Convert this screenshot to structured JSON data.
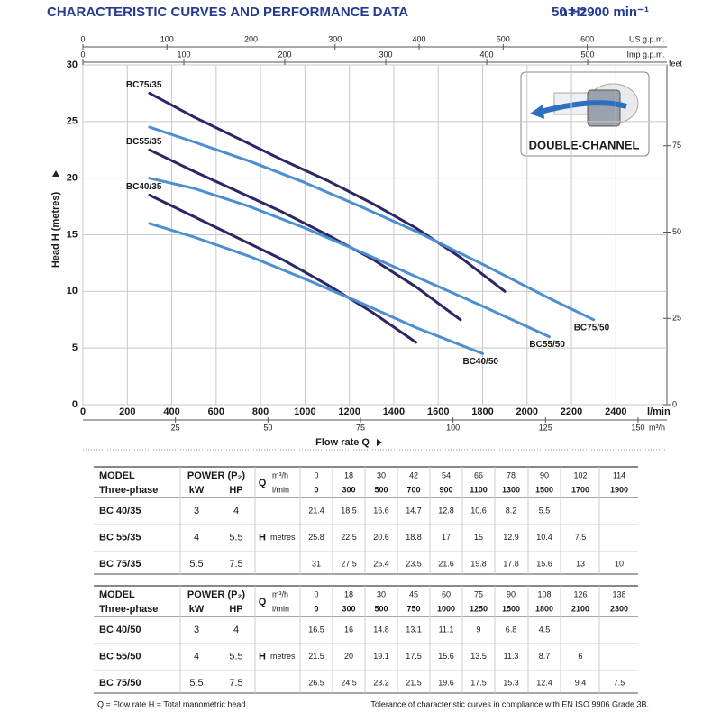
{
  "header": {
    "title": "CHARACTERISTIC CURVES AND PERFORMANCE DATA",
    "frequency": "50 Hz",
    "speed": "n= 2900 min⁻¹"
  },
  "chart_data": {
    "type": "line",
    "xlabel": "Flow rate Q",
    "ylabel": "Head H (metres)",
    "x_unit": "l/min",
    "xlim": [
      0,
      2630
    ],
    "xticks": [
      0,
      200,
      400,
      600,
      800,
      1000,
      1200,
      1400,
      1600,
      1800,
      2000,
      2200,
      2400
    ],
    "ylim": [
      0,
      30
    ],
    "yticks": [
      0,
      5,
      10,
      15,
      20,
      25,
      30
    ],
    "grid": true,
    "x2": {
      "unit": "m³/h",
      "lim": [
        0,
        157.8
      ],
      "ticks": [
        25,
        50,
        75,
        100,
        125,
        150
      ]
    },
    "x_us": {
      "unit": "US g.p.m.",
      "lim": [
        0,
        694.8
      ],
      "ticks": [
        0,
        100,
        200,
        300,
        400,
        500,
        600
      ]
    },
    "x_imp": {
      "unit": "Imp g.p.m.",
      "lim": [
        0,
        578.5
      ],
      "ticks": [
        0,
        100,
        200,
        300,
        400,
        500
      ]
    },
    "y2": {
      "unit": "feet",
      "lim": [
        0,
        98.43
      ],
      "ticks": [
        0,
        25,
        50,
        75
      ]
    },
    "badge": "DOUBLE-CHANNEL",
    "series": [
      {
        "name": "BC75/35",
        "color": "#2b2766",
        "x": [
          300,
          500,
          700,
          900,
          1100,
          1300,
          1500,
          1700,
          1900
        ],
        "values": [
          27.5,
          25.4,
          23.5,
          21.6,
          19.8,
          17.8,
          15.6,
          13,
          10
        ]
      },
      {
        "name": "BC55/35",
        "color": "#2b2766",
        "x": [
          300,
          500,
          700,
          900,
          1100,
          1300,
          1500,
          1700
        ],
        "values": [
          22.5,
          20.6,
          18.8,
          17,
          15,
          12.9,
          10.4,
          7.5
        ]
      },
      {
        "name": "BC40/35",
        "color": "#2b2766",
        "x": [
          300,
          500,
          700,
          900,
          1100,
          1300,
          1500
        ],
        "values": [
          18.5,
          16.6,
          14.7,
          12.8,
          10.6,
          8.2,
          5.5
        ]
      },
      {
        "name": "BC75/50",
        "color": "#4b8fd1",
        "x": [
          300,
          500,
          750,
          1000,
          1250,
          1500,
          1800,
          2100,
          2300
        ],
        "values": [
          24.5,
          23.2,
          21.5,
          19.6,
          17.5,
          15.3,
          12.4,
          9.4,
          7.5
        ]
      },
      {
        "name": "BC55/50",
        "color": "#4b8fd1",
        "x": [
          300,
          500,
          750,
          1000,
          1250,
          1500,
          1800,
          2100
        ],
        "values": [
          20,
          19.1,
          17.5,
          15.6,
          13.5,
          11.3,
          8.7,
          6
        ]
      },
      {
        "name": "BC40/50",
        "color": "#4b8fd1",
        "x": [
          300,
          500,
          750,
          1000,
          1250,
          1500,
          1800
        ],
        "values": [
          16,
          14.8,
          13.1,
          11.1,
          9,
          6.8,
          4.5
        ]
      }
    ]
  },
  "tables": [
    {
      "model": "MODEL",
      "power": "POWER (P₂)",
      "three_phase": "Three-phase",
      "kw": "kW",
      "hp": "HP",
      "q": "Q",
      "m3h": "m³/h",
      "lmin": "l/min",
      "h": "H",
      "metres": "metres",
      "flow_m3h": [
        0,
        18,
        30,
        42,
        54,
        66,
        78,
        90,
        102,
        114
      ],
      "flow_lmin": [
        0,
        300,
        500,
        700,
        900,
        1100,
        1300,
        1500,
        1700,
        1900
      ],
      "rows": [
        {
          "model": "BC 40/35",
          "kw": 3,
          "hp": 4,
          "head": [
            21.4,
            18.5,
            16.6,
            14.7,
            12.8,
            10.6,
            8.2,
            5.5
          ]
        },
        {
          "model": "BC 55/35",
          "kw": 4,
          "hp": 5.5,
          "head": [
            25.8,
            22.5,
            20.6,
            18.8,
            17,
            15,
            12.9,
            10.4,
            7.5
          ]
        },
        {
          "model": "BC 75/35",
          "kw": 5.5,
          "hp": 7.5,
          "head": [
            31,
            27.5,
            25.4,
            23.5,
            21.6,
            19.8,
            17.8,
            15.6,
            13,
            10
          ]
        }
      ]
    },
    {
      "model": "MODEL",
      "power": "POWER (P₂)",
      "three_phase": "Three-phase",
      "kw": "kW",
      "hp": "HP",
      "q": "Q",
      "m3h": "m³/h",
      "lmin": "l/min",
      "h": "H",
      "metres": "metres",
      "flow_m3h": [
        0,
        18,
        30,
        45,
        60,
        75,
        90,
        108,
        126,
        138
      ],
      "flow_lmin": [
        0,
        300,
        500,
        750,
        1000,
        1250,
        1500,
        1800,
        2100,
        2300
      ],
      "rows": [
        {
          "model": "BC 40/50",
          "kw": 3,
          "hp": 4,
          "head": [
            16.5,
            16,
            14.8,
            13.1,
            11.1,
            9,
            6.8,
            4.5
          ]
        },
        {
          "model": "BC 55/50",
          "kw": 4,
          "hp": 5.5,
          "head": [
            21.5,
            20,
            19.1,
            17.5,
            15.6,
            13.5,
            11.3,
            8.7,
            6
          ]
        },
        {
          "model": "BC 75/50",
          "kw": 5.5,
          "hp": 7.5,
          "head": [
            26.5,
            24.5,
            23.2,
            21.5,
            19.6,
            17.5,
            15.3,
            12.4,
            9.4,
            7.5
          ]
        }
      ]
    }
  ],
  "footer": {
    "legend": "Q = Flow rate  H = Total manometric head",
    "tolerance": "Tolerance of characteristic curves in compliance with EN ISO 9906 Grade 3B."
  }
}
